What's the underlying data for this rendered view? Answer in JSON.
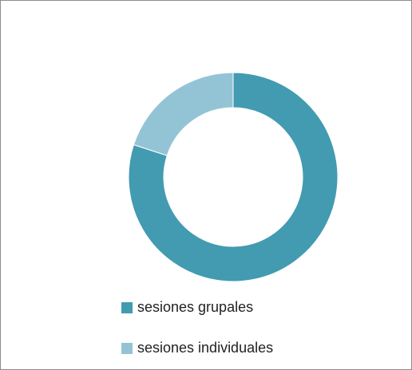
{
  "chart_data": {
    "type": "donut",
    "categories": [
      "sesiones grupales",
      "sesiones individuales"
    ],
    "values": [
      80,
      20
    ],
    "colors": [
      "#429bb1",
      "#93c4d5"
    ]
  }
}
